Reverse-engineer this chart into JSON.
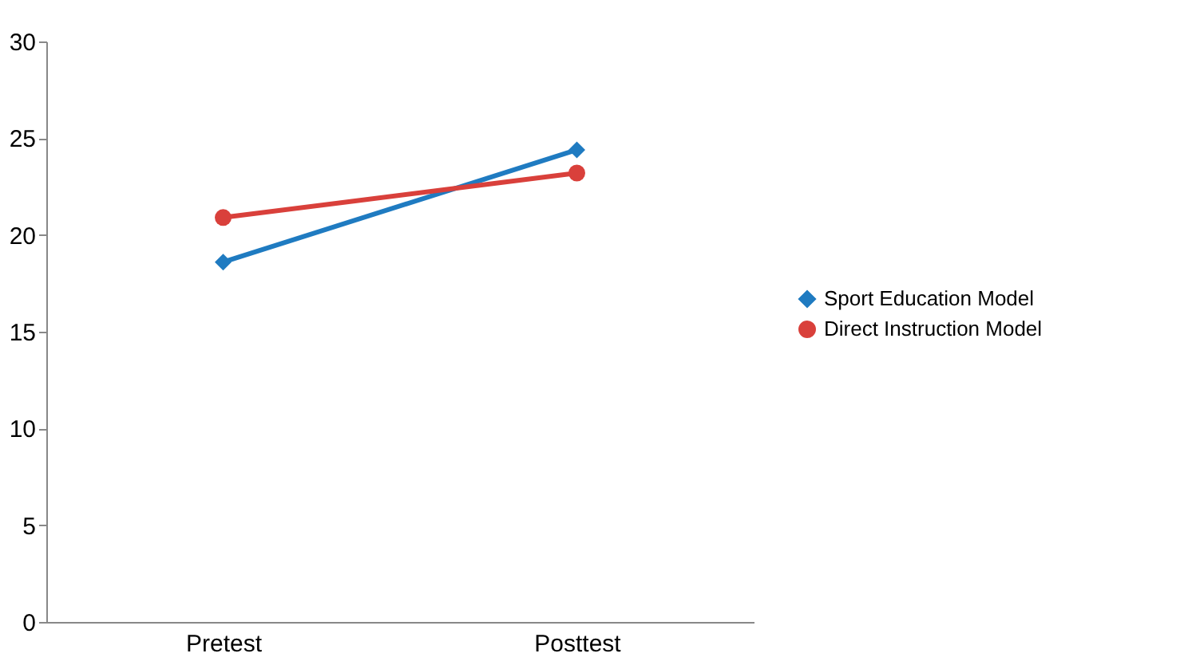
{
  "chart_data": {
    "type": "line",
    "categories": [
      "Pretest",
      "Posttest"
    ],
    "series": [
      {
        "name": "Sport Education Model",
        "color": "#1f7bc1",
        "values": [
          18.6,
          24.4
        ],
        "marker": "diamond"
      },
      {
        "name": "Direct Instruction Model",
        "color": "#d9403b",
        "values": [
          20.9,
          23.2
        ],
        "marker": "circle"
      }
    ],
    "ylim": [
      0,
      30
    ],
    "yticks": [
      0,
      5,
      10,
      15,
      20,
      25,
      30
    ],
    "grid": false,
    "legend": "right",
    "line_style": "solid"
  }
}
